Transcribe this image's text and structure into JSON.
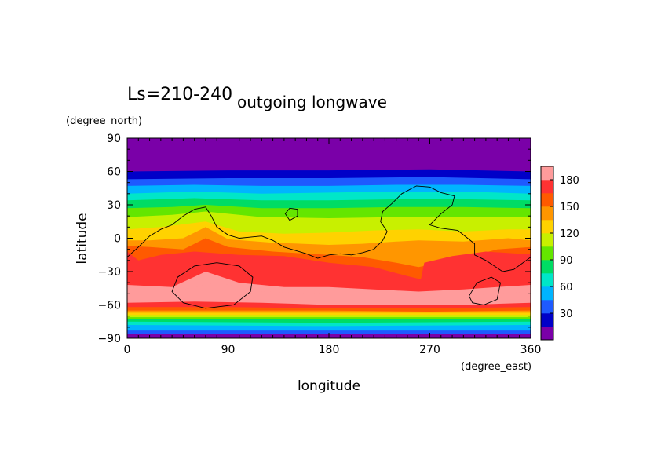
{
  "chart_data": {
    "type": "heatmap",
    "subtitle": "Ls=210-240",
    "title": "outgoing longwave",
    "xlabel": "longitude",
    "ylabel": "latitude",
    "xunit": "(degree_east)",
    "yunit": "(degree_north)",
    "xlim": [
      0,
      360
    ],
    "ylim": [
      -90,
      90
    ],
    "x_ticks": [
      "0",
      "90",
      "180",
      "270",
      "360"
    ],
    "y_ticks": [
      "90",
      "60",
      "30",
      "0",
      "−30",
      "−60",
      "−90"
    ],
    "grid": false,
    "colorbar": {
      "levels": [
        15,
        30,
        45,
        60,
        75,
        90,
        105,
        120,
        135,
        150,
        165,
        180,
        195
      ],
      "tick_labels": [
        "30",
        "60",
        "90",
        "120",
        "150",
        "180"
      ],
      "colors": [
        "#7a00a8",
        "#0000c8",
        "#1e5aff",
        "#00b4ff",
        "#00e6c8",
        "#00dc64",
        "#64e600",
        "#c8f000",
        "#ffd200",
        "#ff9600",
        "#ff5a00",
        "#ff3232",
        "#ff9b9b"
      ]
    },
    "band_boundaries": [
      {
        "level": 15,
        "points": [
          [
            0,
            86
          ],
          [
            360,
            86
          ]
        ]
      },
      {
        "level": 30,
        "points": [
          [
            0,
            60
          ],
          [
            90,
            61
          ],
          [
            180,
            61
          ],
          [
            270,
            62
          ],
          [
            360,
            60
          ]
        ]
      },
      {
        "level": 45,
        "points": [
          [
            0,
            53
          ],
          [
            90,
            54
          ],
          [
            180,
            54
          ],
          [
            270,
            55
          ],
          [
            360,
            53
          ]
        ]
      },
      {
        "level": 60,
        "points": [
          [
            0,
            47
          ],
          [
            60,
            48
          ],
          [
            120,
            47
          ],
          [
            180,
            47
          ],
          [
            240,
            48
          ],
          [
            300,
            48
          ],
          [
            360,
            47
          ]
        ]
      },
      {
        "level": 75,
        "points": [
          [
            0,
            40
          ],
          [
            60,
            42
          ],
          [
            120,
            40
          ],
          [
            180,
            41
          ],
          [
            240,
            42
          ],
          [
            300,
            42
          ],
          [
            360,
            40
          ]
        ]
      },
      {
        "level": 90,
        "points": [
          [
            0,
            34
          ],
          [
            60,
            36
          ],
          [
            120,
            34
          ],
          [
            180,
            34
          ],
          [
            240,
            35
          ],
          [
            300,
            35
          ],
          [
            360,
            34
          ]
        ]
      },
      {
        "level": 105,
        "points": [
          [
            0,
            27
          ],
          [
            40,
            28
          ],
          [
            70,
            30
          ],
          [
            120,
            27
          ],
          [
            180,
            27
          ],
          [
            240,
            28
          ],
          [
            300,
            28
          ],
          [
            360,
            27
          ]
        ]
      },
      {
        "level": 120,
        "points": [
          [
            0,
            19
          ],
          [
            40,
            21
          ],
          [
            70,
            24
          ],
          [
            120,
            19
          ],
          [
            180,
            18
          ],
          [
            240,
            19
          ],
          [
            300,
            19
          ],
          [
            360,
            19
          ]
        ]
      },
      {
        "level": 135,
        "points": [
          [
            0,
            8
          ],
          [
            30,
            10
          ],
          [
            70,
            15
          ],
          [
            100,
            6
          ],
          [
            140,
            4
          ],
          [
            180,
            5
          ],
          [
            220,
            7
          ],
          [
            260,
            8
          ],
          [
            300,
            6
          ],
          [
            340,
            8
          ],
          [
            360,
            8
          ]
        ]
      },
      {
        "level": 150,
        "points": [
          [
            0,
            -2
          ],
          [
            20,
            -2
          ],
          [
            50,
            0
          ],
          [
            70,
            10
          ],
          [
            90,
            -1
          ],
          [
            130,
            -4
          ],
          [
            180,
            -6
          ],
          [
            210,
            -5
          ],
          [
            240,
            -3
          ],
          [
            260,
            -2
          ],
          [
            300,
            -3
          ],
          [
            340,
            0
          ],
          [
            360,
            -2
          ]
        ]
      },
      {
        "level": 165,
        "points": [
          [
            0,
            -7
          ],
          [
            20,
            -8
          ],
          [
            50,
            -10
          ],
          [
            70,
            0
          ],
          [
            90,
            -8
          ],
          [
            130,
            -12
          ],
          [
            180,
            -15
          ],
          [
            210,
            -17
          ],
          [
            240,
            -22
          ],
          [
            260,
            -26
          ],
          [
            300,
            -18
          ],
          [
            330,
            -10
          ],
          [
            360,
            -8
          ]
        ]
      },
      {
        "level": 180,
        "points": [
          [
            0,
            -12
          ],
          [
            10,
            -20
          ],
          [
            30,
            -15
          ],
          [
            60,
            -12
          ],
          [
            100,
            -15
          ],
          [
            140,
            -16
          ],
          [
            180,
            -22
          ],
          [
            220,
            -26
          ],
          [
            250,
            -34
          ],
          [
            262,
            -37
          ],
          [
            265,
            -22
          ],
          [
            290,
            -16
          ],
          [
            320,
            -12
          ],
          [
            350,
            -14
          ],
          [
            360,
            -14
          ]
        ]
      },
      {
        "level": 195,
        "points": [
          [
            0,
            -42
          ],
          [
            40,
            -44
          ],
          [
            70,
            -30
          ],
          [
            100,
            -40
          ],
          [
            140,
            -44
          ],
          [
            180,
            -44
          ],
          [
            220,
            -46
          ],
          [
            260,
            -48
          ],
          [
            300,
            -46
          ],
          [
            330,
            -44
          ],
          [
            360,
            -42
          ]
        ]
      },
      {
        "level": "lower-180",
        "points": [
          [
            0,
            -47
          ],
          [
            40,
            -48
          ],
          [
            80,
            -40
          ],
          [
            120,
            -48
          ],
          [
            180,
            -50
          ],
          [
            240,
            -52
          ],
          [
            300,
            -52
          ],
          [
            360,
            -48
          ]
        ]
      },
      {
        "level": "lower-165",
        "points": [
          [
            0,
            -58
          ],
          [
            60,
            -57
          ],
          [
            120,
            -58
          ],
          [
            180,
            -60
          ],
          [
            240,
            -60
          ],
          [
            300,
            -60
          ],
          [
            360,
            -58
          ]
        ]
      },
      {
        "level": "lower-150",
        "points": [
          [
            0,
            -62
          ],
          [
            90,
            -62
          ],
          [
            180,
            -63
          ],
          [
            270,
            -63
          ],
          [
            360,
            -62
          ]
        ]
      },
      {
        "level": "lower-135",
        "points": [
          [
            0,
            -65
          ],
          [
            90,
            -65
          ],
          [
            180,
            -65
          ],
          [
            270,
            -66
          ],
          [
            360,
            -65
          ]
        ]
      },
      {
        "level": "lower-120",
        "points": [
          [
            0,
            -67
          ],
          [
            180,
            -67
          ],
          [
            360,
            -67
          ]
        ]
      },
      {
        "level": "lower-105",
        "points": [
          [
            0,
            -69
          ],
          [
            180,
            -69
          ],
          [
            360,
            -69
          ]
        ]
      },
      {
        "level": "lower-90",
        "points": [
          [
            0,
            -71
          ],
          [
            180,
            -71
          ],
          [
            360,
            -71
          ]
        ]
      },
      {
        "level": "lower-75",
        "points": [
          [
            0,
            -73
          ],
          [
            180,
            -73
          ],
          [
            360,
            -73
          ]
        ]
      },
      {
        "level": "lower-60",
        "points": [
          [
            0,
            -75
          ],
          [
            180,
            -76
          ],
          [
            360,
            -75
          ]
        ]
      },
      {
        "level": "lower-45",
        "points": [
          [
            0,
            -78
          ],
          [
            180,
            -79
          ],
          [
            360,
            -78
          ]
        ]
      },
      {
        "level": "lower-30",
        "points": [
          [
            0,
            -83
          ],
          [
            180,
            -83
          ],
          [
            360,
            -83
          ]
        ]
      }
    ],
    "band_fill_order": [
      12,
      11,
      10,
      9,
      8,
      7,
      6,
      5,
      4,
      3,
      2,
      1,
      0
    ],
    "lower_fill_colors": [
      "#ff3232",
      "#ff5a00",
      "#ff9600",
      "#ffd200",
      "#c8f000",
      "#64e600",
      "#00dc64",
      "#00e6c8",
      "#00b4ff",
      "#1e5aff",
      "#0000c8",
      "#7a00a8"
    ],
    "topography_contours": [
      {
        "closed": false,
        "points": [
          [
            0,
            -17
          ],
          [
            10,
            -8
          ],
          [
            20,
            2
          ],
          [
            30,
            8
          ],
          [
            40,
            12
          ],
          [
            50,
            20
          ],
          [
            60,
            26
          ],
          [
            70,
            28
          ],
          [
            75,
            20
          ],
          [
            80,
            10
          ],
          [
            90,
            3
          ],
          [
            100,
            0
          ],
          [
            110,
            1
          ],
          [
            120,
            2
          ],
          [
            130,
            -2
          ],
          [
            140,
            -8
          ],
          [
            150,
            -11
          ],
          [
            160,
            -14
          ],
          [
            170,
            -18
          ],
          [
            180,
            -15
          ],
          [
            190,
            -14
          ],
          [
            200,
            -15
          ],
          [
            210,
            -13
          ],
          [
            220,
            -10
          ],
          [
            228,
            -2
          ],
          [
            232,
            6
          ],
          [
            226,
            15
          ],
          [
            228,
            24
          ],
          [
            236,
            31
          ],
          [
            245,
            40
          ],
          [
            258,
            47
          ],
          [
            270,
            46
          ],
          [
            280,
            41
          ],
          [
            292,
            38
          ],
          [
            290,
            30
          ],
          [
            280,
            22
          ],
          [
            270,
            12
          ],
          [
            280,
            9
          ],
          [
            295,
            7
          ],
          [
            310,
            -5
          ],
          [
            310,
            -15
          ],
          [
            320,
            -20
          ],
          [
            335,
            -30
          ],
          [
            345,
            -28
          ],
          [
            360,
            -17
          ]
        ]
      },
      {
        "closed": true,
        "points": [
          [
            40,
            -48
          ],
          [
            45,
            -35
          ],
          [
            60,
            -25
          ],
          [
            80,
            -22
          ],
          [
            100,
            -25
          ],
          [
            112,
            -35
          ],
          [
            110,
            -48
          ],
          [
            95,
            -60
          ],
          [
            70,
            -63
          ],
          [
            50,
            -58
          ]
        ]
      },
      {
        "closed": true,
        "points": [
          [
            141,
            22
          ],
          [
            145,
            27
          ],
          [
            152,
            26
          ],
          [
            152,
            20
          ],
          [
            145,
            16
          ]
        ]
      },
      {
        "closed": true,
        "points": [
          [
            305,
            -52
          ],
          [
            312,
            -40
          ],
          [
            325,
            -35
          ],
          [
            333,
            -40
          ],
          [
            330,
            -55
          ],
          [
            318,
            -60
          ],
          [
            308,
            -58
          ]
        ]
      }
    ]
  }
}
